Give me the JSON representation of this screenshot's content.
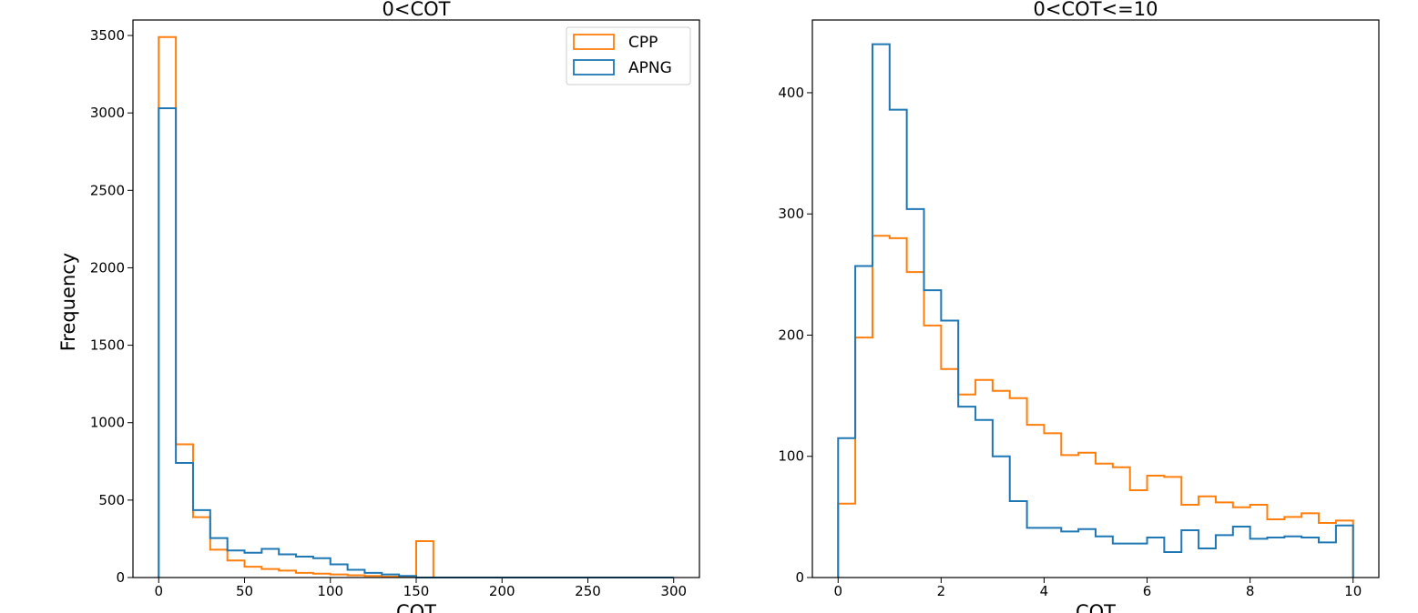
{
  "colors": {
    "CPP": "#ff7f0e",
    "APNG": "#1f77b4"
  },
  "chart_data": [
    {
      "type": "histogram-step",
      "title": "0<COT",
      "xlabel": "COT",
      "ylabel": "Frequency",
      "xlim": [
        -15,
        315
      ],
      "ylim": [
        0,
        3600
      ],
      "xticks": [
        0,
        50,
        100,
        150,
        200,
        250,
        300
      ],
      "yticks": [
        0,
        500,
        1000,
        1500,
        2000,
        2500,
        3000,
        3500
      ],
      "bin_edges": [
        0,
        10,
        20,
        30,
        40,
        50,
        60,
        70,
        80,
        90,
        100,
        110,
        120,
        130,
        140,
        150,
        160,
        170,
        180,
        190,
        200,
        210,
        220,
        230,
        240,
        250,
        260,
        270,
        280,
        290,
        300
      ],
      "legend": {
        "location": "upper right",
        "entries": [
          "CPP",
          "APNG"
        ]
      },
      "series": [
        {
          "name": "CPP",
          "values": [
            3490,
            860,
            390,
            180,
            110,
            70,
            55,
            45,
            30,
            25,
            20,
            15,
            10,
            5,
            5,
            235,
            0,
            0,
            0,
            0,
            0,
            0,
            0,
            0,
            0,
            0,
            0,
            0,
            0,
            0
          ]
        },
        {
          "name": "APNG",
          "values": [
            3030,
            740,
            435,
            255,
            175,
            160,
            185,
            150,
            135,
            125,
            85,
            50,
            30,
            20,
            10,
            0,
            0,
            0,
            0,
            0,
            0,
            0,
            0,
            0,
            0,
            0,
            0,
            0,
            0,
            0
          ]
        }
      ]
    },
    {
      "type": "histogram-step",
      "title": "0<COT<=10",
      "xlabel": "COT",
      "ylabel": "",
      "xlim": [
        -0.5,
        10.5
      ],
      "ylim": [
        0,
        460
      ],
      "xticks": [
        0,
        2,
        4,
        6,
        8,
        10
      ],
      "yticks": [
        0,
        100,
        200,
        300,
        400
      ],
      "bin_edges": [
        0,
        0.333,
        0.667,
        1.0,
        1.333,
        1.667,
        2.0,
        2.333,
        2.667,
        3.0,
        3.333,
        3.667,
        4.0,
        4.333,
        4.667,
        5.0,
        5.333,
        5.667,
        6.0,
        6.333,
        6.667,
        7.0,
        7.333,
        7.667,
        8.0,
        8.333,
        8.667,
        9.0,
        9.333,
        9.667,
        10.0
      ],
      "series": [
        {
          "name": "CPP",
          "values": [
            61,
            198,
            282,
            280,
            252,
            208,
            172,
            151,
            163,
            154,
            148,
            126,
            119,
            101,
            103,
            94,
            91,
            72,
            84,
            83,
            60,
            67,
            62,
            58,
            60,
            48,
            50,
            53,
            45,
            47
          ]
        },
        {
          "name": "APNG",
          "values": [
            115,
            257,
            440,
            386,
            304,
            237,
            212,
            141,
            130,
            100,
            63,
            41,
            41,
            38,
            40,
            34,
            28,
            28,
            33,
            21,
            39,
            24,
            35,
            42,
            32,
            33,
            34,
            33,
            29,
            43
          ]
        }
      ]
    }
  ]
}
